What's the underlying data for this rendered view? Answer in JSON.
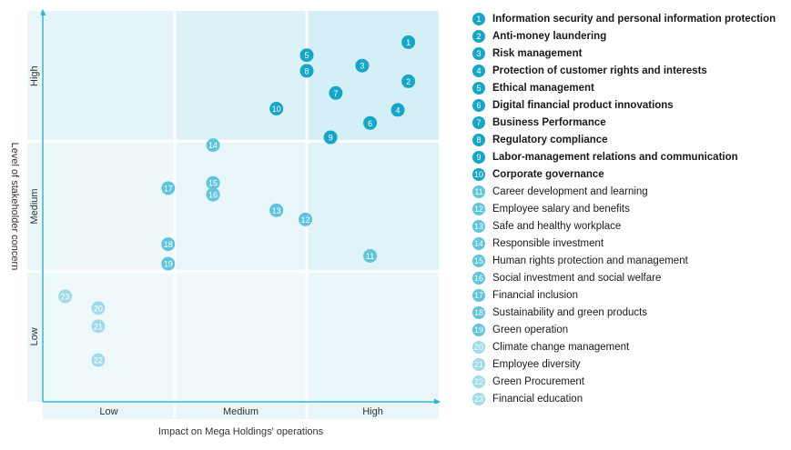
{
  "chart_data": {
    "type": "scatter",
    "xlabel": "Impact on Mega Holdings' operations",
    "ylabel": "Level of stakeholder concern",
    "x_categories": [
      "Low",
      "Medium",
      "High"
    ],
    "y_categories": [
      "Low",
      "Medium",
      "High"
    ],
    "xlim": [
      0,
      3
    ],
    "ylim": [
      0,
      3
    ],
    "colors": {
      "high": "#16a6c7",
      "medium": "#5fc5dd",
      "low": "#a2dbe8",
      "axis": "#2fb6d3"
    },
    "points": [
      {
        "id": "1",
        "label": "Information security and personal information protection",
        "level": "high",
        "x": 2.77,
        "y": 2.76
      },
      {
        "id": "2",
        "label": "Anti-money laundering",
        "level": "high",
        "x": 2.77,
        "y": 2.46
      },
      {
        "id": "3",
        "label": "Risk management",
        "level": "high",
        "x": 2.42,
        "y": 2.58
      },
      {
        "id": "4",
        "label": "Protection of customer rights and interests",
        "level": "high",
        "x": 2.69,
        "y": 2.24
      },
      {
        "id": "5",
        "label": "Ethical management",
        "level": "high",
        "x": 2.0,
        "y": 2.66
      },
      {
        "id": "6",
        "label": "Digital financial product innovations",
        "level": "high",
        "x": 2.48,
        "y": 2.14
      },
      {
        "id": "7",
        "label": "Business Performance",
        "level": "high",
        "x": 2.22,
        "y": 2.37
      },
      {
        "id": "8",
        "label": "Regulatory compliance",
        "level": "high",
        "x": 2.0,
        "y": 2.54
      },
      {
        "id": "9",
        "label": "Labor-management relations and communication",
        "level": "high",
        "x": 2.18,
        "y": 2.03
      },
      {
        "id": "10",
        "label": "Corporate governance",
        "level": "high",
        "x": 1.77,
        "y": 2.25
      },
      {
        "id": "11",
        "label": "Career development and learning",
        "level": "medium",
        "x": 2.48,
        "y": 1.12
      },
      {
        "id": "12",
        "label": "Employee salary and benefits",
        "level": "medium",
        "x": 1.99,
        "y": 1.4
      },
      {
        "id": "13",
        "label": "Safe and healthy workplace",
        "level": "medium",
        "x": 1.77,
        "y": 1.47
      },
      {
        "id": "14",
        "label": "Responsible investment",
        "level": "medium",
        "x": 1.29,
        "y": 1.97
      },
      {
        "id": "15",
        "label": "Human rights protection and management",
        "level": "medium",
        "x": 1.29,
        "y": 1.68
      },
      {
        "id": "16",
        "label": "Social investment and social welfare",
        "level": "medium",
        "x": 1.29,
        "y": 1.59
      },
      {
        "id": "17",
        "label": "Financial inclusion",
        "level": "medium",
        "x": 0.95,
        "y": 1.64
      },
      {
        "id": "18",
        "label": "Sustainability and green products",
        "level": "medium",
        "x": 0.95,
        "y": 1.21
      },
      {
        "id": "19",
        "label": "Green operation",
        "level": "medium",
        "x": 0.95,
        "y": 1.06
      },
      {
        "id": "20",
        "label": "Climate change management",
        "level": "low",
        "x": 0.42,
        "y": 0.72
      },
      {
        "id": "21",
        "label": "Employee diversity",
        "level": "low",
        "x": 0.42,
        "y": 0.58
      },
      {
        "id": "22",
        "label": "Green Procurement",
        "level": "low",
        "x": 0.42,
        "y": 0.32
      },
      {
        "id": "23",
        "label": "Financial education",
        "level": "low",
        "x": 0.17,
        "y": 0.81
      }
    ]
  }
}
